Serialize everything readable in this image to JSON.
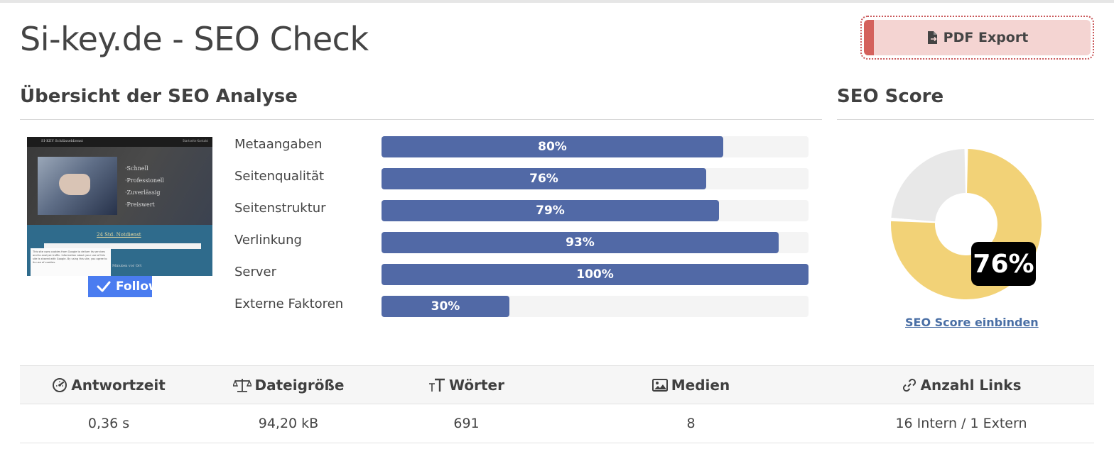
{
  "page": {
    "title": "Si-key.de - SEO Check"
  },
  "toolbar": {
    "pdf_label": "PDF Export",
    "pdf_icon": "file-export-icon"
  },
  "overview": {
    "title": "Übersicht der SEO Analyse",
    "follow_label": "Follow",
    "thumbnail": {
      "brand": "SI-KEY Schlüsseldienst",
      "nav_links": "Startseite   Kontakt",
      "bullets": [
        "·Schnell",
        "·Professionell",
        "·Zuverlässig",
        "·Preiswert"
      ],
      "heading": "24 Std. Notdienst",
      "cookie_text": "This site uses cookies from Google to deliver its services and to analyze traffic. Information about your use of this site is shared with Google. By using this site, you agree to its use of cookies.",
      "side_text": "Minuten vor Ort"
    },
    "metrics": [
      {
        "label": "Metaangaben",
        "value": 80,
        "display": "80%"
      },
      {
        "label": "Seitenqualität",
        "value": 76,
        "display": "76%"
      },
      {
        "label": "Seitenstruktur",
        "value": 79,
        "display": "79%"
      },
      {
        "label": "Verlinkung",
        "value": 93,
        "display": "93%"
      },
      {
        "label": "Server",
        "value": 100,
        "display": "100%"
      },
      {
        "label": "Externe Faktoren",
        "value": 30,
        "display": "30%"
      }
    ]
  },
  "score": {
    "title": "SEO Score",
    "value": 76,
    "display": "76%",
    "link_label": "SEO Score einbinden",
    "colors": {
      "fill": "#f2d277",
      "rest": "#e8e8e8"
    }
  },
  "stats": {
    "columns": [
      {
        "icon": "gauge-icon",
        "label": "Antwortzeit",
        "value": "0,36 s"
      },
      {
        "icon": "balance-scale-icon",
        "label": "Dateigröße",
        "value": "94,20 kB"
      },
      {
        "icon": "text-size-icon",
        "label": "Wörter",
        "value": "691"
      },
      {
        "icon": "image-icon",
        "label": "Medien",
        "value": "8"
      },
      {
        "icon": "link-icon",
        "label": "Anzahl Links",
        "value": "16 Intern / 1 Extern"
      }
    ]
  },
  "colors": {
    "bar": "#5169a6",
    "track": "#f4f4f4",
    "pdf_bg": "#f4d4d2",
    "pdf_accent": "#d4615c",
    "follow": "#4a7cf0"
  }
}
